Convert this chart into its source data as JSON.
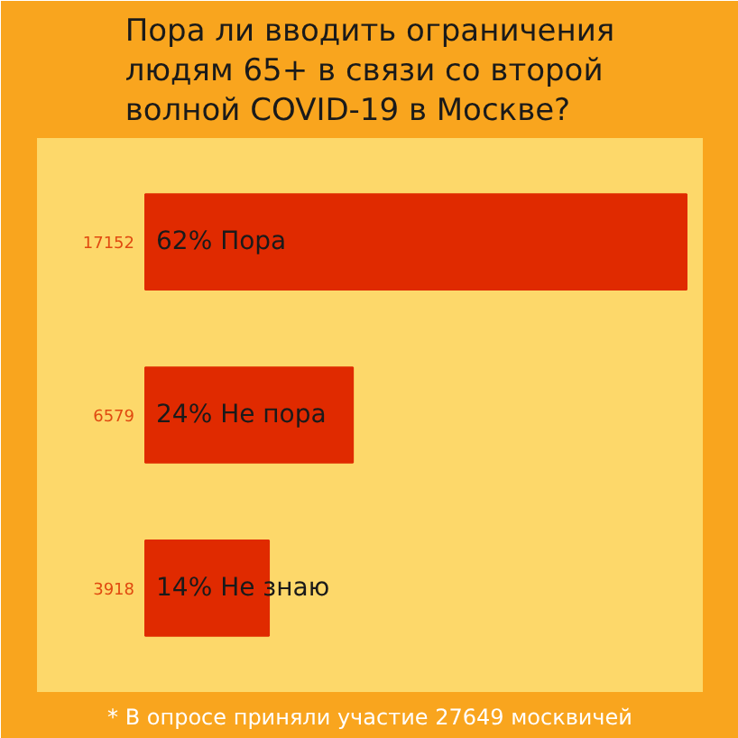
{
  "chart_data": {
    "type": "bar",
    "orientation": "horizontal",
    "title": "Пора ли вводить ограничения людям 65+ в связи со второй волной COVID-19 в Москве?",
    "categories": [
      "62% Пора",
      "24% Не пора",
      "14% Не знаю"
    ],
    "values": [
      17152,
      6579,
      3918
    ],
    "color": "#e02a00",
    "data_labels": true,
    "grid": false,
    "annotations": [
      "* В опросе приняли участие 27649 москвичей"
    ]
  }
}
